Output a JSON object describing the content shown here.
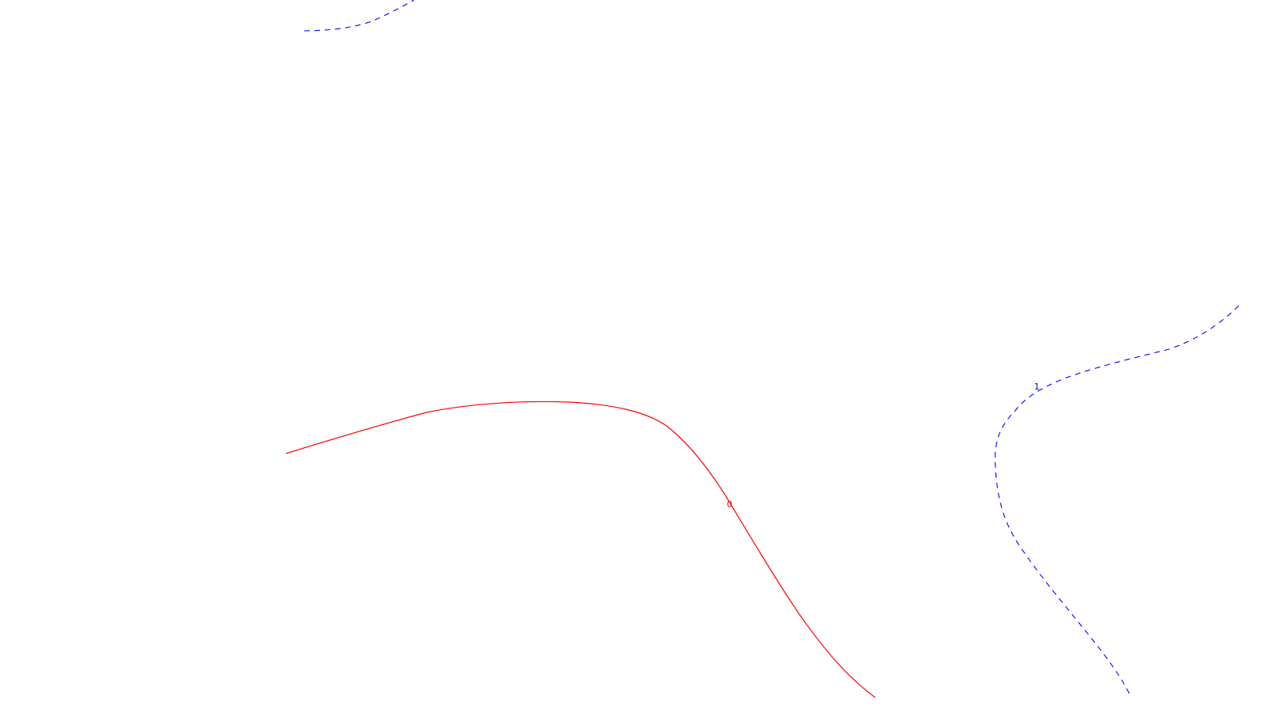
{
  "colors": {
    "background": "#ffffff",
    "level_0": "#ff0000",
    "level_1": "#0000ff"
  },
  "contours": [
    {
      "id": "contour-level-0",
      "label": "0",
      "color": "#ff0000",
      "style": "solid"
    },
    {
      "id": "contour-level-1-right",
      "label": "1",
      "color": "#0000ff",
      "style": "dashed"
    },
    {
      "id": "contour-level-1-top",
      "label": "",
      "color": "#0000ff",
      "style": "dashed"
    }
  ]
}
